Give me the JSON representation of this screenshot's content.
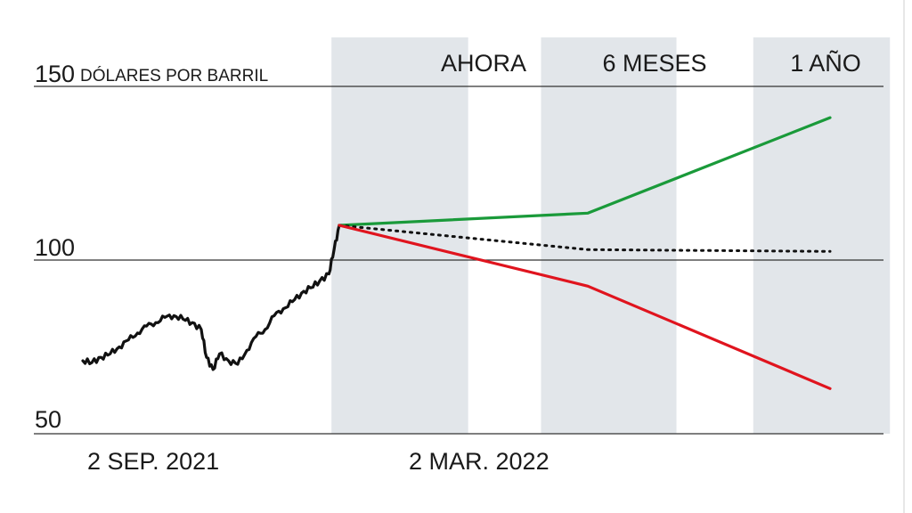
{
  "chart_data": {
    "type": "line",
    "unit": "DÓLARES POR BARRIL",
    "ylim": [
      50,
      150
    ],
    "yticks": [
      {
        "value": 150,
        "label": "150"
      },
      {
        "value": 100,
        "label": "100"
      },
      {
        "value": 50,
        "label": "50"
      }
    ],
    "xticks": [
      {
        "date": "2021-09-02",
        "label": "2 SEP. 2021"
      },
      {
        "date": "2022-03-02",
        "label": "2 MAR. 2022"
      }
    ],
    "bands": [
      {
        "label": "AHORA",
        "start": "2022-03-02",
        "end": "2022-06-15"
      },
      {
        "label": "6 MESES",
        "start": "2022-08-10",
        "end": "2022-11-22"
      },
      {
        "label": "1 AÑO",
        "start": "2023-01-20",
        "end": "2023-05-05"
      }
    ],
    "colors": {
      "history": "#111111",
      "high": "#1a9a3a",
      "mid": "#111111",
      "low": "#e0141e",
      "band": "#e2e6ea",
      "grid": "#333333"
    },
    "history": {
      "x": [
        "2021-08-23",
        "2021-08-30",
        "2021-09-06",
        "2021-09-13",
        "2021-09-20",
        "2021-09-27",
        "2021-10-04",
        "2021-10-11",
        "2021-10-18",
        "2021-10-25",
        "2021-11-01",
        "2021-11-08",
        "2021-11-15",
        "2021-11-22",
        "2021-11-26",
        "2021-12-01",
        "2021-12-06",
        "2021-12-13",
        "2021-12-20",
        "2021-12-27",
        "2022-01-03",
        "2022-01-10",
        "2022-01-17",
        "2022-01-24",
        "2022-01-31",
        "2022-02-07",
        "2022-02-14",
        "2022-02-21",
        "2022-02-28",
        "2022-03-04",
        "2022-03-08"
      ],
      "y": [
        71,
        70.5,
        72,
        73,
        75,
        77,
        79,
        81,
        82,
        83.5,
        84,
        83,
        82,
        80,
        72,
        68.5,
        73,
        71,
        70,
        74,
        78,
        80,
        84,
        86,
        88,
        90.5,
        92,
        94,
        96,
        103,
        110
      ]
    },
    "scenarios": [
      {
        "key": "high",
        "x": [
          "2022-03-08",
          "2022-09-15",
          "2023-03-20"
        ],
        "y": [
          110,
          113.5,
          141
        ]
      },
      {
        "key": "mid",
        "x": [
          "2022-03-08",
          "2022-09-15",
          "2023-03-20"
        ],
        "y": [
          110,
          103,
          102.5
        ]
      },
      {
        "key": "low",
        "x": [
          "2022-03-08",
          "2022-09-15",
          "2023-03-20"
        ],
        "y": [
          110,
          92.5,
          63
        ]
      }
    ]
  }
}
